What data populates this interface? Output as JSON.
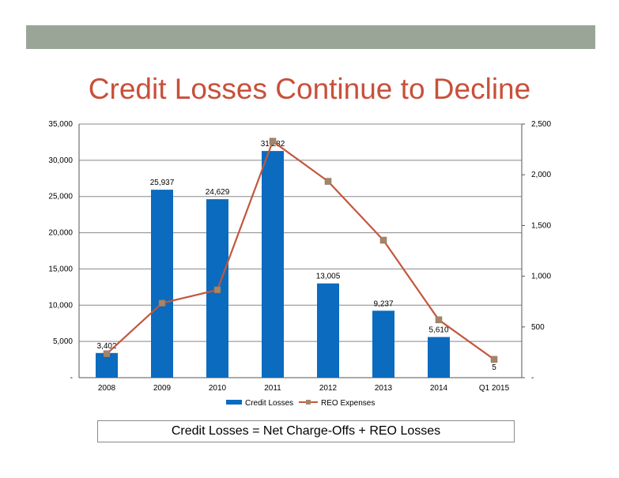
{
  "slide": {
    "title": "Credit Losses Continue to Decline",
    "footnote": "Credit Losses = Net Charge-Offs + REO Losses"
  },
  "colors": {
    "bar": "#0a6bbf",
    "line": "#c2573c",
    "marker": "#a5856a",
    "title": "#c8503a",
    "grid": "#888888"
  },
  "chart_data": {
    "type": "bar",
    "categories": [
      "2008",
      "2009",
      "2010",
      "2011",
      "2012",
      "2013",
      "2014",
      "Q1 2015"
    ],
    "series": [
      {
        "name": "Credit Losses",
        "type": "bar",
        "axis": "left",
        "values": [
          3402,
          25937,
          24629,
          31282,
          13005,
          9237,
          5610,
          5
        ],
        "labels": [
          "3,402",
          "25,937",
          "24,629",
          "31,282",
          "13,005",
          "9,237",
          "5,610",
          "5"
        ]
      },
      {
        "name": "REO Expenses",
        "type": "line",
        "axis": "right",
        "values": [
          235,
          735,
          865,
          2330,
          1935,
          1355,
          570,
          180
        ]
      }
    ],
    "y_left": {
      "range": [
        0,
        35000
      ],
      "ticks": [
        0,
        5000,
        10000,
        15000,
        20000,
        25000,
        30000,
        35000
      ],
      "tick_labels": [
        "-",
        "5,000",
        "10,000",
        "15,000",
        "20,000",
        "25,000",
        "30,000",
        "35,000"
      ]
    },
    "y_right": {
      "range": [
        0,
        2500
      ],
      "ticks": [
        0,
        500,
        1000,
        1500,
        2000,
        2500
      ],
      "tick_labels": [
        "-",
        "500",
        "1,000",
        "1,500",
        "2,000",
        "2,500"
      ]
    },
    "grid": true,
    "legend": "bottom"
  }
}
